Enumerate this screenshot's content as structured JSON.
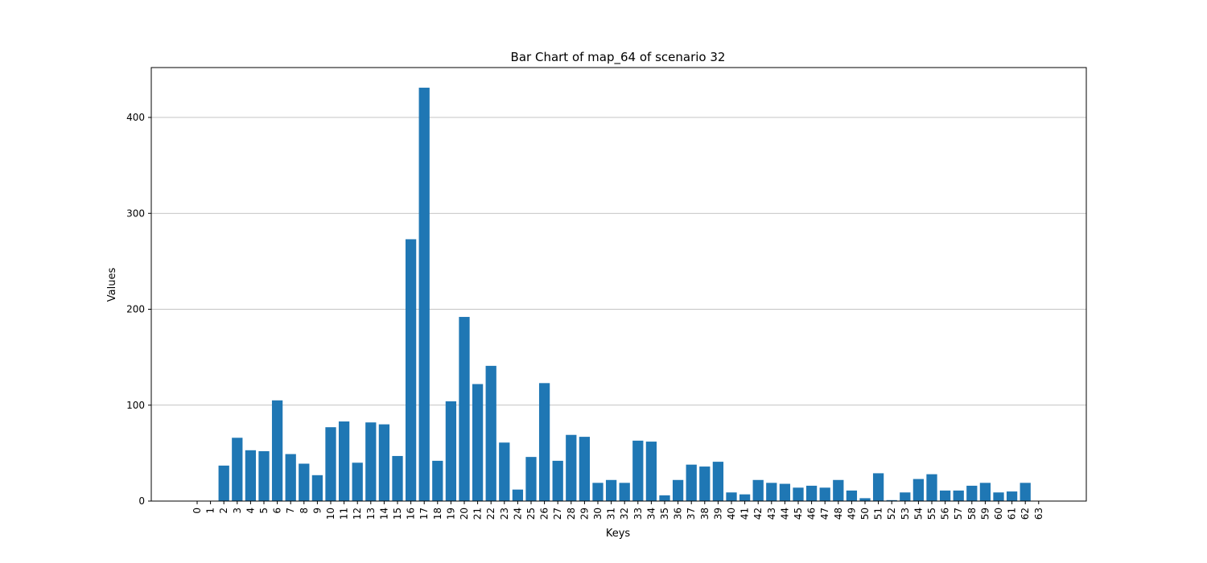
{
  "chart_data": {
    "type": "bar",
    "title": "Bar Chart of map_64 of scenario 32",
    "xlabel": "Keys",
    "ylabel": "Values",
    "categories": [
      "0",
      "1",
      "2",
      "3",
      "4",
      "5",
      "6",
      "7",
      "8",
      "9",
      "10",
      "11",
      "12",
      "13",
      "14",
      "15",
      "16",
      "17",
      "18",
      "19",
      "20",
      "21",
      "22",
      "23",
      "24",
      "25",
      "26",
      "27",
      "28",
      "29",
      "30",
      "31",
      "32",
      "33",
      "34",
      "35",
      "36",
      "37",
      "38",
      "39",
      "40",
      "41",
      "42",
      "43",
      "44",
      "45",
      "46",
      "47",
      "48",
      "49",
      "50",
      "51",
      "52",
      "53",
      "54",
      "55",
      "56",
      "57",
      "58",
      "59",
      "60",
      "61",
      "62",
      "63"
    ],
    "values": [
      0,
      0,
      37,
      66,
      53,
      52,
      105,
      49,
      39,
      27,
      77,
      83,
      40,
      82,
      80,
      47,
      273,
      431,
      42,
      104,
      192,
      122,
      141,
      61,
      12,
      46,
      123,
      42,
      69,
      67,
      19,
      22,
      19,
      63,
      62,
      6,
      22,
      38,
      36,
      41,
      9,
      7,
      22,
      19,
      18,
      14,
      16,
      14,
      22,
      11,
      3,
      29,
      1,
      9,
      23,
      28,
      11,
      11,
      16,
      19,
      9,
      10,
      19,
      0
    ],
    "ylim": [
      0,
      452
    ],
    "yticks": [
      0,
      100,
      200,
      300,
      400
    ],
    "grid": "y",
    "color": "#1f77b4"
  }
}
